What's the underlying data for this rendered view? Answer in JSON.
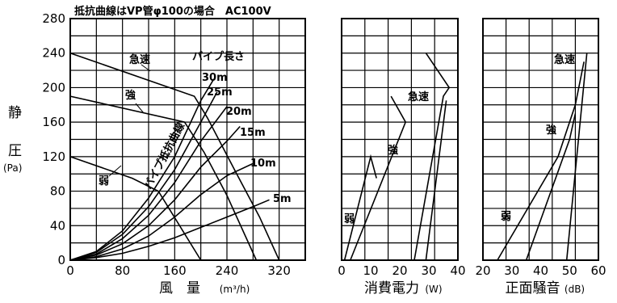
{
  "title": "抵抗曲線はVP管φ100の場合　AC100V",
  "y_axis": {
    "label_top": "静",
    "label_bottom": "圧",
    "unit": "(Pa)"
  },
  "chart_data": [
    {
      "type": "line",
      "name": "airflow-static-pressure",
      "xlabel": "風　量",
      "xunit": "(m³/h)",
      "xlim": [
        0,
        360
      ],
      "ylim": [
        0,
        280
      ],
      "xticks": [
        0,
        80,
        160,
        240,
        320
      ],
      "yticks": [
        0,
        40,
        80,
        120,
        160,
        200,
        240,
        280
      ],
      "series": [
        {
          "name": "急速",
          "values": [
            [
              0,
              240
            ],
            [
              190,
              190
            ],
            [
              210,
              165
            ],
            [
              255,
              100
            ],
            [
              290,
              50
            ],
            [
              320,
              0
            ]
          ]
        },
        {
          "name": "強",
          "values": [
            [
              0,
              190
            ],
            [
              175,
              160
            ],
            [
              205,
              125
            ],
            [
              240,
              75
            ],
            [
              285,
              0
            ]
          ]
        },
        {
          "name": "弱",
          "values": [
            [
              0,
              120
            ],
            [
              95,
              95
            ],
            [
              135,
              80
            ],
            [
              200,
              0
            ]
          ]
        }
      ],
      "resistance_curves": [
        {
          "name": "30m",
          "values": [
            [
              0,
              0
            ],
            [
              40,
              10
            ],
            [
              80,
              34
            ],
            [
              120,
              72
            ],
            [
              160,
              120
            ],
            [
              200,
              185
            ],
            [
              220,
              210
            ]
          ]
        },
        {
          "name": "25m",
          "values": [
            [
              0,
              0
            ],
            [
              40,
              9
            ],
            [
              80,
              30
            ],
            [
              120,
              62
            ],
            [
              160,
              105
            ],
            [
              200,
              160
            ],
            [
              225,
              195
            ]
          ]
        },
        {
          "name": "20m",
          "values": [
            [
              0,
              0
            ],
            [
              40,
              7
            ],
            [
              80,
              25
            ],
            [
              120,
              52
            ],
            [
              160,
              90
            ],
            [
              200,
              138
            ],
            [
              240,
              178
            ]
          ]
        },
        {
          "name": "15m",
          "values": [
            [
              0,
              0
            ],
            [
              40,
              6
            ],
            [
              80,
              19
            ],
            [
              120,
              40
            ],
            [
              160,
              70
            ],
            [
              200,
              108
            ],
            [
              240,
              138
            ],
            [
              260,
              155
            ]
          ]
        },
        {
          "name": "10m",
          "values": [
            [
              0,
              0
            ],
            [
              40,
              4
            ],
            [
              80,
              13
            ],
            [
              120,
              28
            ],
            [
              160,
              50
            ],
            [
              200,
              76
            ],
            [
              240,
              98
            ],
            [
              280,
              112
            ]
          ]
        },
        {
          "name": "5m",
          "values": [
            [
              0,
              0
            ],
            [
              40,
              3
            ],
            [
              80,
              8
            ],
            [
              120,
              16
            ],
            [
              160,
              26
            ],
            [
              200,
              38
            ],
            [
              240,
              50
            ],
            [
              280,
              62
            ],
            [
              305,
              70
            ]
          ]
        }
      ],
      "annotations": {
        "pipe_length_label": "パイプ長さ",
        "resistance_label": "パイプ抵抗曲線",
        "series_labels": [
          "急速",
          "強",
          "弱"
        ],
        "length_labels": [
          "30m",
          "25m",
          "20m",
          "15m",
          "10m",
          "5m"
        ]
      }
    },
    {
      "type": "line",
      "name": "power-consumption",
      "xlabel": "消費電力",
      "xunit": "(W)",
      "xlim": [
        0,
        40
      ],
      "ylim": [
        0,
        280
      ],
      "xticks": [
        0,
        10,
        20,
        30,
        40
      ],
      "series": [
        {
          "name": "急速",
          "values": [
            [
              25,
              0
            ],
            [
              35,
              190
            ],
            [
              37,
              200
            ],
            [
              29,
              240
            ]
          ]
        },
        {
          "name": "強",
          "values": [
            [
              3,
              0
            ],
            [
              22,
              160
            ],
            [
              17,
              190
            ]
          ]
        },
        {
          "name": "弱",
          "values": [
            [
              1,
              0
            ],
            [
              10,
              120
            ],
            [
              12,
              95
            ]
          ]
        },
        {
          "name": "急速-ref",
          "values": [
            [
              29,
              0
            ],
            [
              36,
              185
            ]
          ]
        }
      ]
    },
    {
      "type": "line",
      "name": "front-noise",
      "xlabel": "正面騒音",
      "xunit": "(dB)",
      "xlim": [
        20,
        60
      ],
      "ylim": [
        0,
        280
      ],
      "xticks": [
        20,
        30,
        40,
        50,
        60
      ],
      "series": [
        {
          "name": "急速",
          "values": [
            [
              49,
              0
            ],
            [
              56,
              240
            ]
          ]
        },
        {
          "name": "強",
          "values": [
            [
              35,
              0
            ],
            [
              50,
              140
            ],
            [
              52,
              170
            ]
          ]
        },
        {
          "name": "弱",
          "values": [
            [
              25,
              0
            ],
            [
              46,
              120
            ],
            [
              52,
              180
            ],
            [
              55,
              230
            ]
          ]
        }
      ]
    }
  ]
}
